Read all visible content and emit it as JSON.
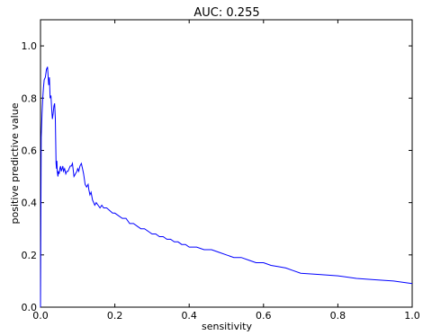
{
  "chart_data": {
    "type": "line",
    "title": "AUC: 0.255",
    "xlabel": "sensitivity",
    "ylabel": "positive predictive value",
    "xlim": [
      0.0,
      1.0
    ],
    "ylim": [
      0.0,
      1.1
    ],
    "x_ticks": [
      "0.0",
      "0.2",
      "0.4",
      "0.6",
      "0.8",
      "1.0"
    ],
    "y_ticks": [
      "0.0",
      "0.2",
      "0.4",
      "0.6",
      "0.8",
      "1.0"
    ],
    "grid": false,
    "legend": "none",
    "series": [
      {
        "color": "#0000ff",
        "x": [
          0.0,
          0.002,
          0.004,
          0.006,
          0.008,
          0.01,
          0.013,
          0.016,
          0.019,
          0.022,
          0.024,
          0.026,
          0.028,
          0.03,
          0.032,
          0.034,
          0.036,
          0.038,
          0.04,
          0.042,
          0.043,
          0.044,
          0.045,
          0.047,
          0.048,
          0.05,
          0.052,
          0.054,
          0.056,
          0.058,
          0.06,
          0.062,
          0.065,
          0.068,
          0.071,
          0.074,
          0.077,
          0.08,
          0.083,
          0.086,
          0.09,
          0.094,
          0.098,
          0.1,
          0.103,
          0.106,
          0.11,
          0.113,
          0.116,
          0.12,
          0.124,
          0.128,
          0.13,
          0.133,
          0.136,
          0.14,
          0.143,
          0.146,
          0.15,
          0.155,
          0.16,
          0.165,
          0.17,
          0.178,
          0.186,
          0.194,
          0.2,
          0.21,
          0.22,
          0.23,
          0.24,
          0.25,
          0.26,
          0.27,
          0.28,
          0.29,
          0.3,
          0.31,
          0.32,
          0.33,
          0.34,
          0.35,
          0.36,
          0.37,
          0.38,
          0.39,
          0.4,
          0.42,
          0.44,
          0.46,
          0.48,
          0.5,
          0.52,
          0.54,
          0.56,
          0.58,
          0.6,
          0.62,
          0.64,
          0.66,
          0.68,
          0.7,
          0.75,
          0.8,
          0.85,
          0.9,
          0.95,
          1.0
        ],
        "y": [
          0.0,
          0.65,
          0.74,
          0.8,
          0.84,
          0.87,
          0.88,
          0.91,
          0.92,
          0.85,
          0.88,
          0.8,
          0.81,
          0.76,
          0.72,
          0.74,
          0.77,
          0.78,
          0.72,
          0.55,
          0.53,
          0.56,
          0.52,
          0.5,
          0.52,
          0.51,
          0.53,
          0.54,
          0.52,
          0.53,
          0.54,
          0.52,
          0.53,
          0.51,
          0.52,
          0.52,
          0.53,
          0.54,
          0.54,
          0.55,
          0.5,
          0.51,
          0.52,
          0.53,
          0.52,
          0.54,
          0.55,
          0.53,
          0.51,
          0.47,
          0.46,
          0.47,
          0.45,
          0.43,
          0.44,
          0.41,
          0.4,
          0.39,
          0.4,
          0.39,
          0.38,
          0.39,
          0.38,
          0.38,
          0.37,
          0.36,
          0.36,
          0.35,
          0.34,
          0.34,
          0.32,
          0.32,
          0.31,
          0.3,
          0.3,
          0.29,
          0.28,
          0.28,
          0.27,
          0.27,
          0.26,
          0.26,
          0.25,
          0.25,
          0.24,
          0.24,
          0.23,
          0.23,
          0.22,
          0.22,
          0.21,
          0.2,
          0.19,
          0.19,
          0.18,
          0.17,
          0.17,
          0.16,
          0.155,
          0.15,
          0.14,
          0.13,
          0.125,
          0.12,
          0.11,
          0.105,
          0.1,
          0.09
        ]
      }
    ]
  }
}
